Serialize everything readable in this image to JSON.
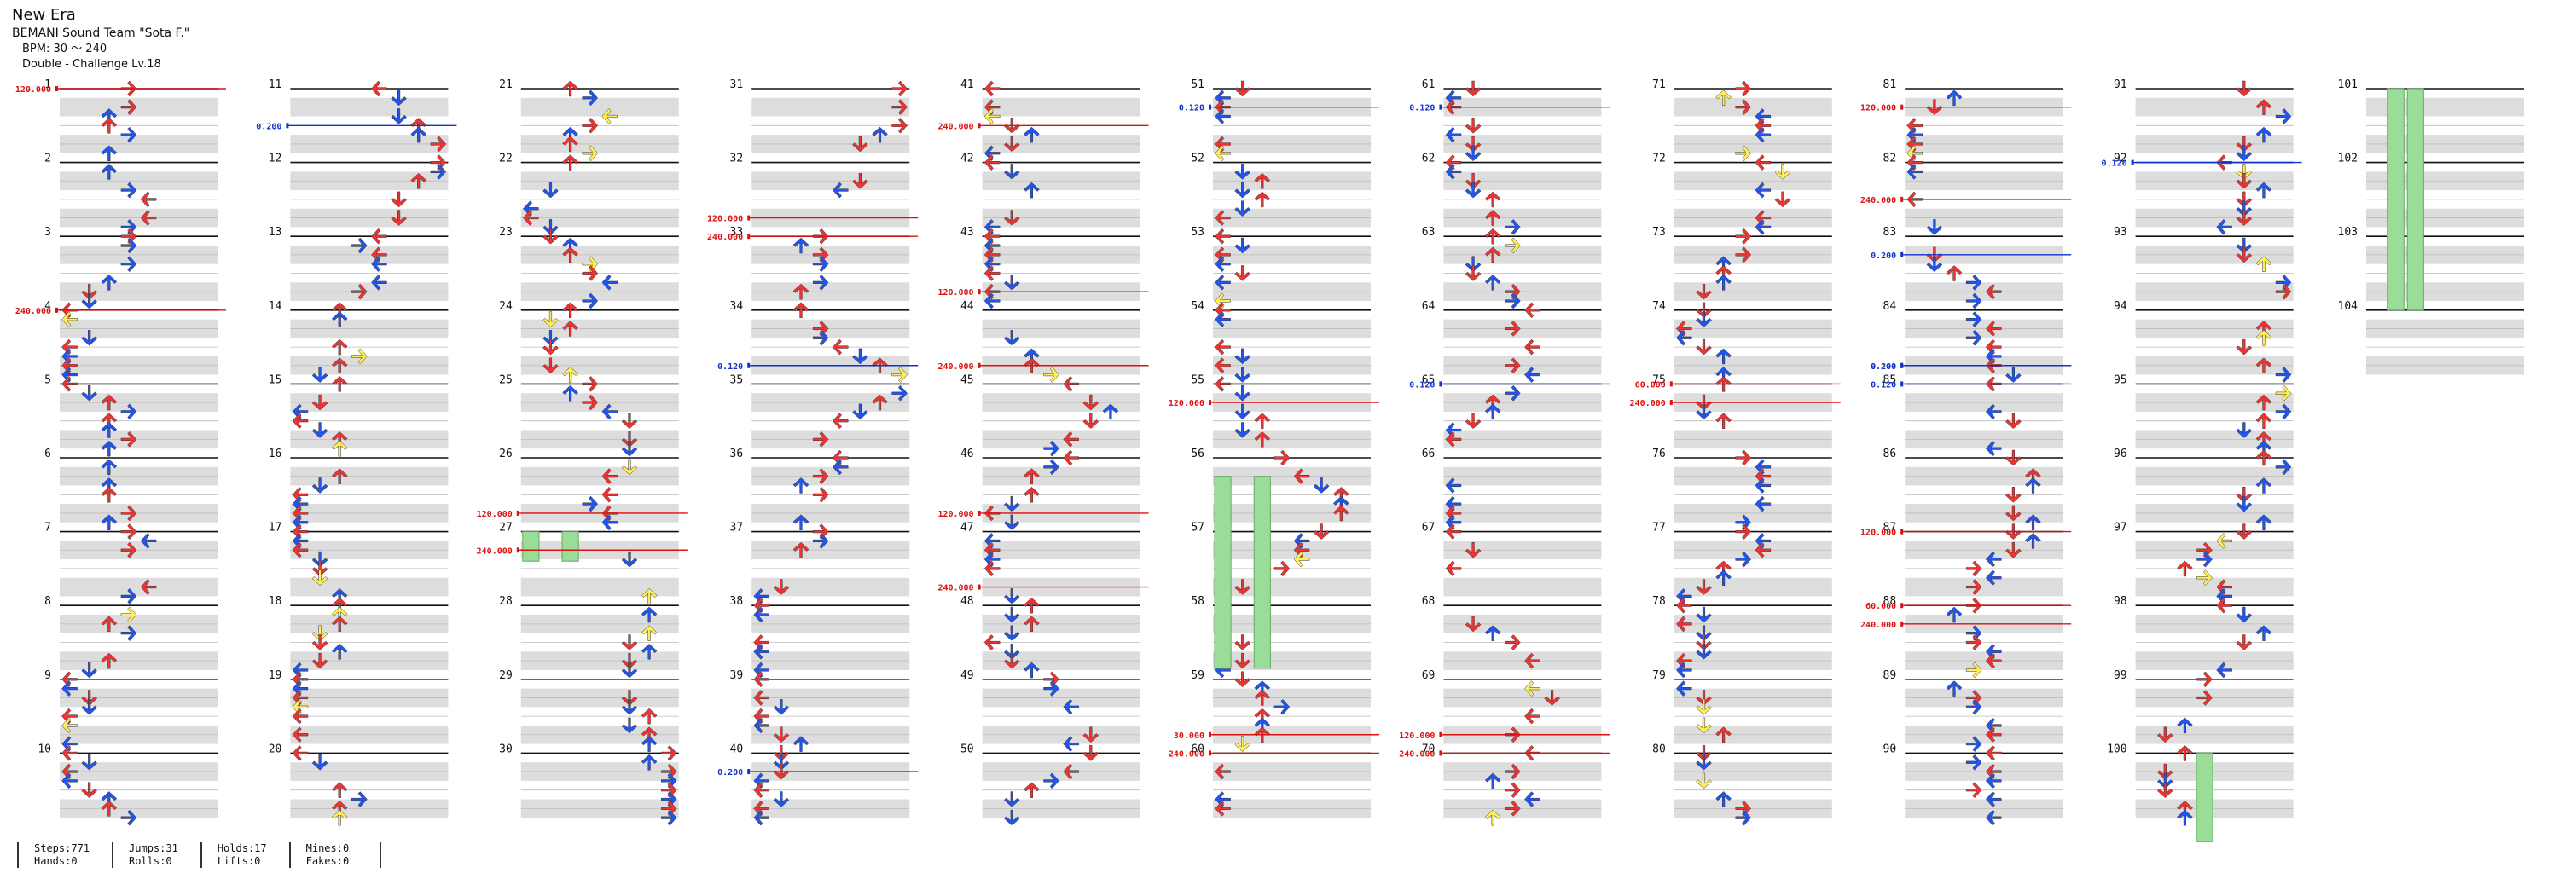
{
  "song": {
    "title": "New Era",
    "artist": "BEMANI Sound Team \"Sota F.\"",
    "bpm": "BPM: 30 ～ 240",
    "difficulty": "Double - Challenge Lv.18"
  },
  "colors": {
    "red_arrow": "#ee3333",
    "blue_arrow": "#2255ee",
    "yellow_arrow": "#ffee55",
    "freeze_green": "#99dd99",
    "bpm_change": "#dd1111",
    "stop": "#1133cc",
    "beat_band": "#dddddd",
    "measure_line": "#111111"
  },
  "stats": {
    "steps": "Steps:771",
    "hands": "Hands:0",
    "jumps": "Jumps:31",
    "rolls": "Rolls:0",
    "holds": "Holds:17",
    "lifts": "Lifts:0",
    "mines": "Mines:0",
    "fakes": "Fakes:0"
  },
  "chart_data": {
    "type": "step-chart",
    "panels": 8,
    "measures_shown": 104,
    "measures_per_column": 10,
    "measure_numbers": [
      "1",
      "2",
      "3",
      "4",
      "5",
      "6",
      "7",
      "8",
      "9",
      "10",
      "11",
      "12",
      "13",
      "14",
      "15",
      "16",
      "17",
      "18",
      "19",
      "20",
      "21",
      "22",
      "23",
      "24",
      "25",
      "26",
      "27",
      "28",
      "29",
      "30",
      "31",
      "32",
      "33",
      "34",
      "35",
      "36",
      "37",
      "38",
      "39",
      "40",
      "41",
      "42",
      "43",
      "44",
      "45",
      "46",
      "47",
      "48",
      "49",
      "50",
      "51",
      "52",
      "53",
      "54",
      "55",
      "56",
      "57",
      "58",
      "59",
      "60",
      "61",
      "62",
      "63",
      "64",
      "65",
      "66",
      "67",
      "68",
      "69",
      "70",
      "71",
      "72",
      "73",
      "74",
      "75",
      "76",
      "77",
      "78",
      "79",
      "80",
      "81",
      "82",
      "83",
      "84",
      "85",
      "86",
      "87",
      "88",
      "89",
      "90",
      "91",
      "92",
      "93",
      "94",
      "95",
      "96",
      "97",
      "98",
      "99",
      "100",
      "101",
      "102",
      "103",
      "104"
    ],
    "bpm_changes": [
      {
        "measure": 1,
        "beat": 0,
        "value": "120.000"
      },
      {
        "measure": 4,
        "beat": 0,
        "value": "240.000"
      },
      {
        "measure": 26,
        "beat": 3,
        "value": "120.000"
      },
      {
        "measure": 27,
        "beat": 1,
        "value": "240.000"
      },
      {
        "measure": 32,
        "beat": 3,
        "value": "120.000"
      },
      {
        "measure": 33,
        "beat": 0,
        "value": "240.000"
      },
      {
        "measure": 41,
        "beat": 2,
        "value": "240.000"
      },
      {
        "measure": 43,
        "beat": 3,
        "value": "120.000"
      },
      {
        "measure": 44,
        "beat": 3,
        "value": "240.000"
      },
      {
        "measure": 55,
        "beat": 1,
        "value": "120.000"
      },
      {
        "measure": 46,
        "beat": 3,
        "value": "120.000"
      },
      {
        "measure": 47,
        "beat": 3,
        "value": "240.000"
      },
      {
        "measure": 59,
        "beat": 3,
        "value": "30.000"
      },
      {
        "measure": 60,
        "beat": 0,
        "value": "240.000"
      },
      {
        "measure": 69,
        "beat": 3,
        "value": "120.000"
      },
      {
        "measure": 70,
        "beat": 0,
        "value": "240.000"
      },
      {
        "measure": 75,
        "beat": 0,
        "value": "60.000"
      },
      {
        "measure": 75,
        "beat": 1,
        "value": "240.000"
      },
      {
        "measure": 81,
        "beat": 1,
        "value": "120.000"
      },
      {
        "measure": 82,
        "beat": 2,
        "value": "240.000"
      },
      {
        "measure": 87,
        "beat": 0,
        "value": "120.000"
      },
      {
        "measure": 88,
        "beat": 0,
        "value": "60.000"
      },
      {
        "measure": 88,
        "beat": 1,
        "value": "240.000"
      }
    ],
    "stops": [
      {
        "measure": 11,
        "beat": 2,
        "value": "0.200"
      },
      {
        "measure": 34,
        "beat": 3,
        "value": "0.120"
      },
      {
        "measure": 40,
        "beat": 1,
        "value": "0.200"
      },
      {
        "measure": 51,
        "beat": 1,
        "value": "0.120"
      },
      {
        "measure": 61,
        "beat": 1,
        "value": "0.120"
      },
      {
        "measure": 65,
        "beat": 0,
        "value": "0.120"
      },
      {
        "measure": 83,
        "beat": 1,
        "value": "0.200"
      },
      {
        "measure": 84,
        "beat": 3,
        "value": "0.200"
      },
      {
        "measure": 84,
        "beat": 3,
        "value": "0.200"
      },
      {
        "measure": 85,
        "beat": 0,
        "value": "0.120"
      },
      {
        "measure": 92,
        "beat": 0,
        "value": "0.120"
      }
    ]
  }
}
